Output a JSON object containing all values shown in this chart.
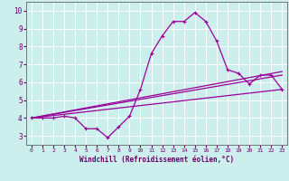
{
  "xlabel": "Windchill (Refroidissement éolien,°C)",
  "background_color": "#cceeed",
  "line_color": "#990099",
  "grid_color": "#ffffff",
  "xlim": [
    -0.5,
    23.5
  ],
  "ylim": [
    2.5,
    10.5
  ],
  "xticks": [
    0,
    1,
    2,
    3,
    4,
    5,
    6,
    7,
    8,
    9,
    10,
    11,
    12,
    13,
    14,
    15,
    16,
    17,
    18,
    19,
    20,
    21,
    22,
    23
  ],
  "yticks": [
    3,
    4,
    5,
    6,
    7,
    8,
    9,
    10
  ],
  "main_x": [
    0,
    1,
    2,
    3,
    4,
    5,
    6,
    7,
    8,
    9,
    10,
    11,
    12,
    13,
    14,
    15,
    16,
    17,
    18,
    19,
    20,
    21,
    22,
    23
  ],
  "main_y": [
    4.0,
    4.0,
    4.0,
    4.1,
    4.0,
    3.4,
    3.4,
    2.9,
    3.5,
    4.1,
    5.6,
    7.6,
    8.6,
    9.4,
    9.4,
    9.9,
    9.4,
    8.3,
    6.7,
    6.5,
    5.9,
    6.4,
    6.4,
    5.6
  ],
  "line2_x": [
    0,
    23
  ],
  "line2_y": [
    4.0,
    5.6
  ],
  "line3_x": [
    0,
    23
  ],
  "line3_y": [
    4.0,
    6.4
  ],
  "line4_x": [
    0,
    23
  ],
  "line4_y": [
    4.0,
    6.6
  ],
  "marker": "+"
}
